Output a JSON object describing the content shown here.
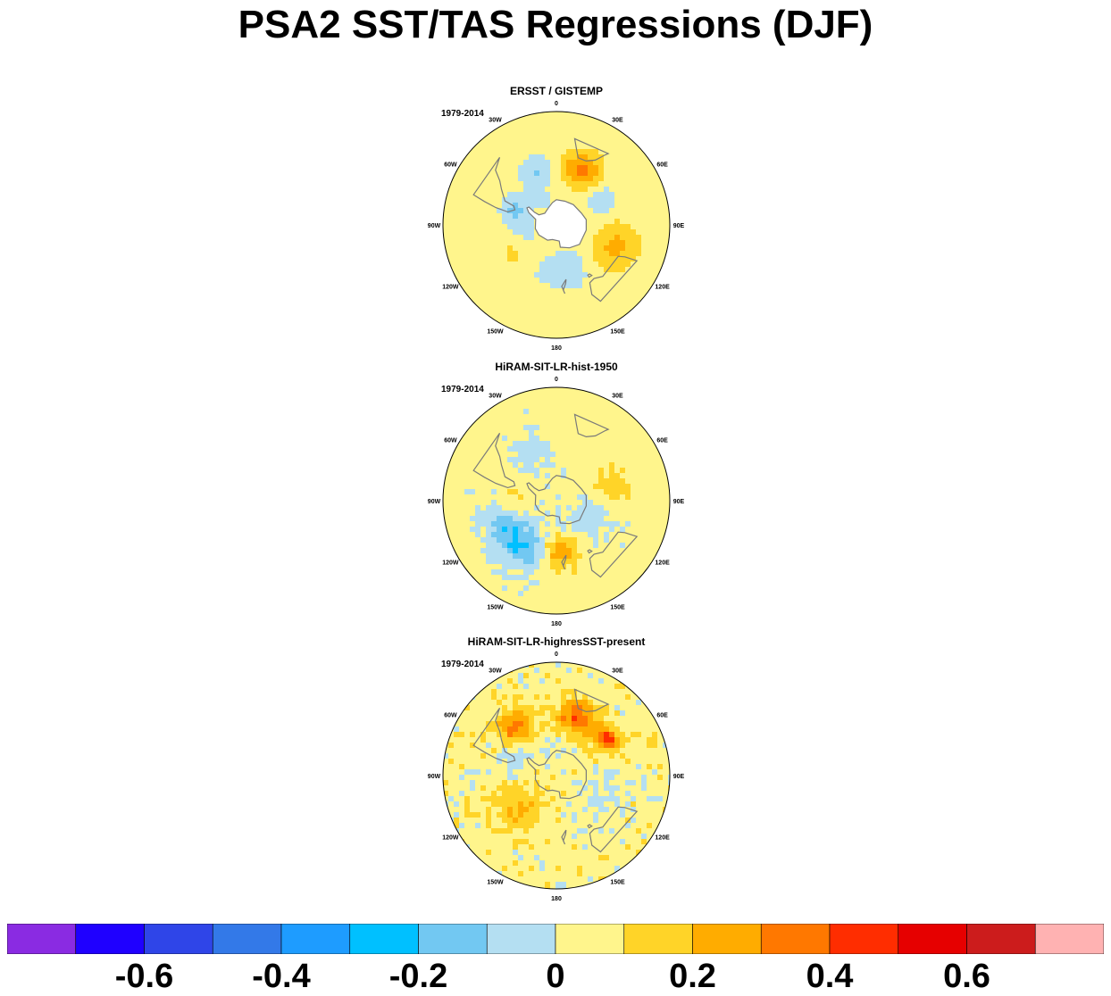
{
  "title": "PSA2 SST/TAS Regressions (DJF)",
  "panels": [
    {
      "title": "ERSST / GISTEMP",
      "period": "1979-2014",
      "field": {
        "base": 0.05,
        "noise": 0.0,
        "mask_antarctica": true,
        "blobs": [
          {
            "lat": -45,
            "lon": -20,
            "r": 9,
            "v": -0.16
          },
          {
            "lat": -42,
            "lon": 25,
            "r": 10,
            "v": 0.28
          },
          {
            "lat": -50,
            "lon": 60,
            "r": 10,
            "v": -0.12
          },
          {
            "lat": -55,
            "lon": -70,
            "r": 8,
            "v": -0.18
          },
          {
            "lat": -62,
            "lon": -110,
            "r": 10,
            "v": -0.06
          },
          {
            "lat": -40,
            "lon": 110,
            "r": 12,
            "v": 0.18
          },
          {
            "lat": -52,
            "lon": 165,
            "r": 10,
            "v": -0.14
          },
          {
            "lat": -45,
            "lon": -150,
            "r": 16,
            "v": -0.05
          },
          {
            "lat": -50,
            "lon": -125,
            "r": 8,
            "v": 0.12
          },
          {
            "lat": -70,
            "lon": -20,
            "r": 8,
            "v": -0.05
          }
        ]
      }
    },
    {
      "title": "HiRAM-SIT-LR-hist-1950",
      "period": "1979-2014",
      "field": {
        "base": 0.04,
        "noise": 0.08,
        "mask_antarctica": false,
        "blobs": [
          {
            "lat": -45,
            "lon": -140,
            "r": 14,
            "v": -0.24
          },
          {
            "lat": -45,
            "lon": -105,
            "r": 10,
            "v": -0.18
          },
          {
            "lat": -55,
            "lon": -95,
            "r": 9,
            "v": 0.14
          },
          {
            "lat": -50,
            "lon": 175,
            "r": 9,
            "v": 0.26
          },
          {
            "lat": -45,
            "lon": 75,
            "r": 9,
            "v": 0.14
          },
          {
            "lat": -45,
            "lon": -30,
            "r": 10,
            "v": -0.12
          },
          {
            "lat": -60,
            "lon": 120,
            "r": 12,
            "v": -0.1
          }
        ]
      }
    },
    {
      "title": "HiRAM-SIT-LR-highresSST-present",
      "period": "1979-2014",
      "field": {
        "base": 0.05,
        "noise": 0.12,
        "mask_antarctica": false,
        "blobs": [
          {
            "lat": -40,
            "lon": -40,
            "r": 9,
            "v": 0.3
          },
          {
            "lat": -42,
            "lon": 20,
            "r": 10,
            "v": 0.32
          },
          {
            "lat": -40,
            "lon": 55,
            "r": 6,
            "v": 0.4
          },
          {
            "lat": -50,
            "lon": -130,
            "r": 12,
            "v": 0.18
          },
          {
            "lat": -55,
            "lon": -70,
            "r": 9,
            "v": -0.12
          },
          {
            "lat": -50,
            "lon": 110,
            "r": 10,
            "v": -0.1
          },
          {
            "lat": -65,
            "lon": 0,
            "r": 8,
            "v": -0.08
          }
        ]
      }
    }
  ],
  "map_labels": {
    "lon_0": "0",
    "lon_30E": "30E",
    "lon_60E": "60E",
    "lon_90E": "90E",
    "lon_120E": "120E",
    "lon_150E": "150E",
    "lon_180": "180",
    "lon_150W": "150W",
    "lon_120W": "120W",
    "lon_90W": "90W",
    "lon_60W": "60W",
    "lon_30W": "30W"
  },
  "colorbar": {
    "colors": [
      "#8a2be2",
      "#1f00ff",
      "#2f45e8",
      "#3379e8",
      "#1e9cff",
      "#00c0ff",
      "#72c8f2",
      "#b4dff2",
      "#fff58c",
      "#ffd428",
      "#ffac00",
      "#ff7800",
      "#ff2d00",
      "#e60000",
      "#cc1c1c",
      "#ffb2b2"
    ],
    "levels": [
      -0.7,
      -0.6,
      -0.5,
      -0.4,
      -0.3,
      -0.2,
      -0.1,
      0,
      0.1,
      0.2,
      0.3,
      0.4,
      0.5,
      0.6,
      0.7
    ],
    "tick_labels": [
      "-0.6",
      "-0.4",
      "-0.2",
      "0",
      "0.2",
      "0.4",
      "0.6"
    ]
  },
  "colors": {
    "land_outline": "#7a7a7a",
    "continent_mask": "#ffffff"
  }
}
